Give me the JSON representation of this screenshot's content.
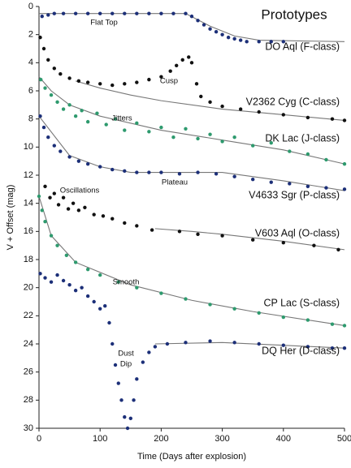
{
  "chart_data": {
    "type": "scatter",
    "title": "Prototypes",
    "x_label": "Time (Days after explosion)",
    "y_label": "V + Offset (mag)",
    "xlim": [
      0,
      500
    ],
    "ylim": [
      0,
      30
    ],
    "y_inverted": true,
    "xticks": [
      0,
      100,
      200,
      300,
      400,
      500
    ],
    "yticks": [
      0,
      2,
      4,
      6,
      8,
      10,
      12,
      14,
      16,
      18,
      20,
      22,
      24,
      26,
      28,
      30
    ],
    "fit_color": "#777777",
    "annotations": [
      "Flat Top",
      "Cusp",
      "Jitters",
      "Plateau",
      "Oscillations",
      "Smooth",
      "Dust",
      "Dip"
    ],
    "series": [
      {
        "name": "DO Aql (F-class)",
        "color": "#1c2f78",
        "x": [
          5,
          15,
          25,
          40,
          60,
          80,
          100,
          120,
          140,
          160,
          180,
          200,
          220,
          240,
          250,
          260,
          270,
          280,
          290,
          300,
          310,
          320,
          330,
          340,
          360,
          380,
          400
        ],
        "values": [
          0.7,
          0.6,
          0.5,
          0.5,
          0.5,
          0.5,
          0.5,
          0.5,
          0.5,
          0.5,
          0.5,
          0.5,
          0.5,
          0.5,
          0.7,
          1.0,
          1.3,
          1.6,
          1.8,
          2.0,
          2.2,
          2.3,
          2.4,
          2.5,
          2.5,
          2.5,
          2.5
        ],
        "fit_x": [
          0,
          240,
          280,
          320,
          360,
          500
        ],
        "fit_values": [
          0.5,
          0.5,
          1.4,
          2.1,
          2.4,
          2.5
        ]
      },
      {
        "name": "V2362 Cyg (C-class)",
        "color": "#111111",
        "x": [
          2,
          8,
          15,
          25,
          35,
          50,
          65,
          80,
          100,
          120,
          140,
          160,
          180,
          200,
          215,
          225,
          235,
          245,
          250,
          258,
          265,
          280,
          300,
          330,
          360,
          400,
          440,
          480,
          500
        ],
        "values": [
          2.2,
          3,
          3.8,
          4.4,
          4.8,
          5.1,
          5.3,
          5.4,
          5.5,
          5.6,
          5.5,
          5.4,
          5.2,
          5.0,
          4.6,
          4.2,
          3.8,
          3.6,
          4.0,
          5.5,
          6.4,
          6.8,
          7.1,
          7.3,
          7.5,
          7.7,
          7.9,
          8.0,
          8.1
        ],
        "fit_x": [
          60,
          100,
          150,
          200,
          300,
          400,
          500
        ],
        "fit_values": [
          5.3,
          5.8,
          6.3,
          6.7,
          7.3,
          7.7,
          8.1
        ]
      },
      {
        "name": "DK Lac (J-class)",
        "color": "#2e9a6e",
        "x": [
          3,
          10,
          20,
          30,
          40,
          50,
          60,
          70,
          80,
          95,
          110,
          125,
          140,
          160,
          180,
          200,
          220,
          240,
          260,
          280,
          300,
          320,
          350,
          380,
          410,
          440,
          470,
          500
        ],
        "values": [
          5.2,
          5.8,
          6.3,
          6.8,
          7.3,
          7.0,
          7.8,
          7.4,
          8.2,
          7.6,
          8.4,
          8.0,
          8.8,
          8.3,
          8.9,
          8.6,
          9.3,
          8.7,
          9.4,
          9.1,
          9.6,
          9.3,
          9.9,
          9.7,
          10.3,
          10.5,
          10.9,
          11.2
        ],
        "fit_x": [
          0,
          20,
          50,
          100,
          200,
          300,
          400,
          500
        ],
        "fit_values": [
          5,
          6,
          7,
          7.8,
          8.8,
          9.5,
          10.2,
          11.2
        ]
      },
      {
        "name": "V4633 Sgr (P-class)",
        "color": "#1c2f78",
        "x": [
          2,
          8,
          15,
          25,
          35,
          50,
          65,
          80,
          100,
          120,
          140,
          160,
          180,
          200,
          230,
          260,
          290,
          320,
          350,
          380,
          410,
          440,
          470,
          500
        ],
        "values": [
          7.8,
          8.6,
          9.3,
          9.9,
          10.3,
          10.7,
          11.0,
          11.2,
          11.4,
          11.6,
          11.7,
          11.8,
          11.8,
          11.8,
          11.9,
          11.8,
          11.9,
          12.1,
          12.3,
          12.5,
          12.6,
          12.8,
          12.9,
          13.0
        ],
        "fit_x": [
          0,
          50,
          100,
          150,
          300,
          400,
          500
        ],
        "fit_values": [
          7.8,
          10.6,
          11.4,
          11.8,
          11.8,
          12.4,
          13.1
        ]
      },
      {
        "name": "V603 Aql (O-class)",
        "color": "#111111",
        "x": [
          10,
          18,
          25,
          32,
          40,
          48,
          56,
          65,
          75,
          90,
          105,
          120,
          140,
          160,
          185,
          230,
          260,
          300,
          350,
          400,
          450,
          490
        ],
        "values": [
          12.8,
          13.6,
          13.3,
          14.1,
          13.6,
          14.4,
          14.0,
          14.5,
          14.3,
          14.8,
          14.9,
          15.1,
          15.4,
          15.6,
          15.9,
          16.0,
          16.2,
          16.3,
          16.6,
          16.8,
          17.0,
          17.3
        ],
        "fit_x": [
          190,
          250,
          300,
          400,
          500
        ],
        "fit_values": [
          15.8,
          16.0,
          16.2,
          16.7,
          17.3
        ]
      },
      {
        "name": "CP Lac (S-class)",
        "color": "#2e9a6e",
        "x": [
          0,
          5,
          10,
          20,
          30,
          45,
          60,
          80,
          100,
          130,
          160,
          200,
          240,
          280,
          320,
          360,
          400,
          440,
          480,
          500
        ],
        "values": [
          13.5,
          14.5,
          15.3,
          16.3,
          17.0,
          17.7,
          18.2,
          18.7,
          19.1,
          19.6,
          20.0,
          20.4,
          20.8,
          21.2,
          21.5,
          21.8,
          22.1,
          22.3,
          22.6,
          22.7
        ],
        "fit_x": [
          0,
          20,
          60,
          150,
          250,
          350,
          500
        ],
        "fit_values": [
          13.5,
          16.3,
          18.2,
          19.8,
          20.9,
          21.7,
          22.7
        ]
      },
      {
        "name": "DQ Her (D-class)",
        "color": "#1c2f78",
        "x": [
          2,
          10,
          20,
          30,
          40,
          50,
          60,
          70,
          80,
          90,
          100,
          108,
          115,
          120,
          125,
          130,
          135,
          140,
          145,
          150,
          155,
          160,
          170,
          180,
          190,
          210,
          240,
          280,
          320,
          360,
          400,
          440,
          480,
          500
        ],
        "values": [
          19.0,
          19.3,
          19.6,
          19.1,
          19.5,
          19.8,
          20.2,
          20.0,
          20.6,
          21.0,
          21.5,
          21.3,
          22.5,
          24.0,
          25.5,
          26.8,
          28.0,
          29.2,
          30.0,
          29.3,
          28.0,
          26.5,
          25.3,
          24.6,
          24.2,
          24.0,
          23.9,
          23.8,
          23.9,
          24.0,
          24.1,
          24.2,
          24.3,
          24.3
        ],
        "fit_x": [
          190,
          300,
          400,
          500
        ],
        "fit_values": [
          24.0,
          23.9,
          24.1,
          24.3
        ]
      }
    ]
  }
}
